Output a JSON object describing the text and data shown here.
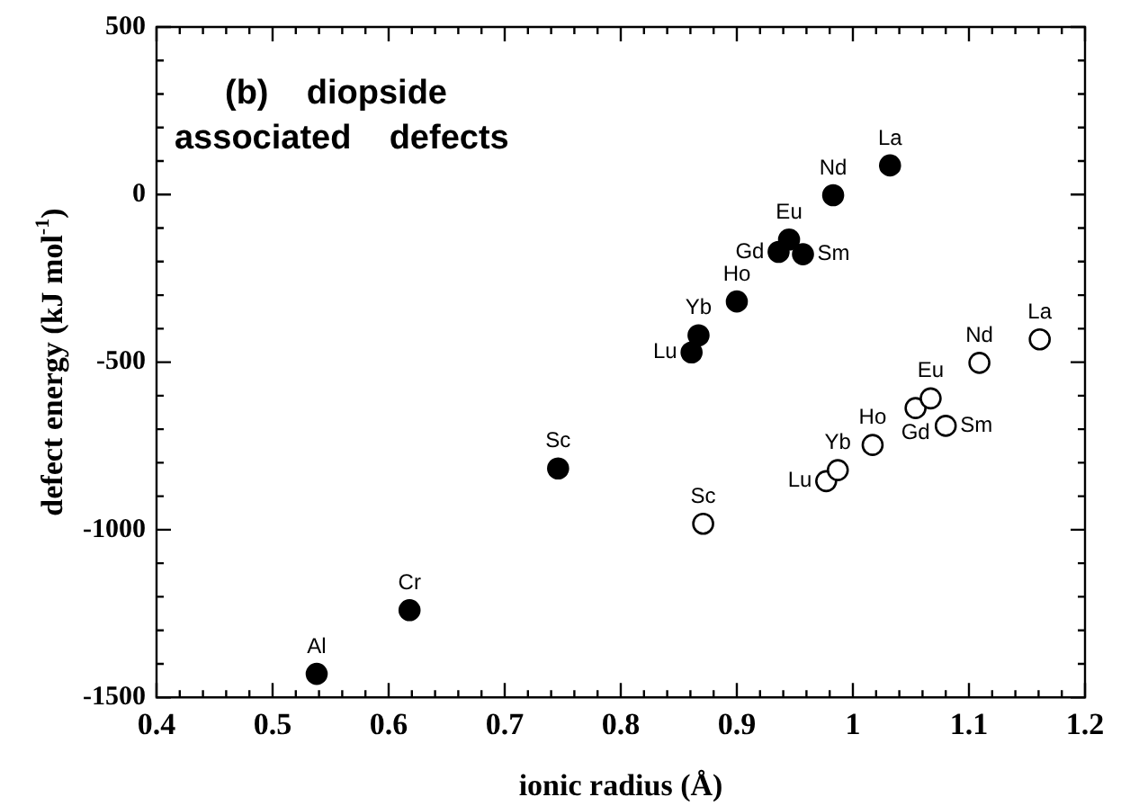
{
  "chart_data": {
    "type": "scatter",
    "annotations": [
      "(b)  diopside",
      "associated  defects",
      {
        "text": "Al",
        "x": 0.538,
        "y": -1430
      },
      {
        "text": "Cr",
        "x": 0.618,
        "y": -1240
      },
      {
        "text": "Sc",
        "x": 0.746,
        "y": -817
      },
      {
        "text": "Lu",
        "x": 0.861,
        "y": -471
      },
      {
        "text": "Yb",
        "x": 0.867,
        "y": -420
      },
      {
        "text": "Ho",
        "x": 0.9,
        "y": -319
      },
      {
        "text": "Gd",
        "x": 0.936,
        "y": -171
      },
      {
        "text": "Eu",
        "x": 0.945,
        "y": -134
      },
      {
        "text": "Sm",
        "x": 0.957,
        "y": -178
      },
      {
        "text": "Nd",
        "x": 0.983,
        "y": -2
      },
      {
        "text": "La",
        "x": 1.032,
        "y": 87
      },
      {
        "text": "Sc",
        "x": 0.871,
        "y": -982
      },
      {
        "text": "Lu",
        "x": 0.977,
        "y": -855
      },
      {
        "text": "Yb",
        "x": 0.987,
        "y": -822
      },
      {
        "text": "Ho",
        "x": 1.017,
        "y": -747
      },
      {
        "text": "Gd",
        "x": 1.054,
        "y": -637
      },
      {
        "text": "Eu",
        "x": 1.067,
        "y": -608
      },
      {
        "text": "Sm",
        "x": 1.08,
        "y": -690
      },
      {
        "text": "Nd",
        "x": 1.109,
        "y": -502
      },
      {
        "text": "La",
        "x": 1.161,
        "y": -432
      }
    ],
    "xlabel": "ionic radius (Å)",
    "ylabel": "defect energy (kJ mol$^{-1}$)",
    "series": [
      {
        "color": "#000000",
        "marker": "circle",
        "x": [
          0.538,
          0.618,
          0.746,
          0.861,
          0.867,
          0.9,
          0.936,
          0.945,
          0.957,
          0.983,
          1.032
        ],
        "values": [
          -1430,
          -1240,
          -817,
          -471,
          -420,
          -319,
          -171,
          -134,
          -178,
          -2,
          87
        ]
      },
      {
        "color": "#ffffff",
        "marker": "circle",
        "x": [
          0.871,
          0.977,
          0.987,
          1.017,
          1.054,
          1.067,
          1.08,
          1.109,
          1.161
        ],
        "values": [
          -982,
          -855,
          -822,
          -747,
          -637,
          -608,
          -690,
          -502,
          -432
        ]
      }
    ],
    "xlim": [
      0.4,
      1.2
    ],
    "xticks": [
      0.4,
      {
        "value": 0.42,
        "label": null
      },
      {
        "value": 0.44,
        "label": null
      },
      {
        "value": 0.46,
        "label": null
      },
      {
        "value": 0.48,
        "label": null
      },
      0.5,
      {
        "value": 0.52,
        "label": null
      },
      {
        "value": 0.54,
        "label": null
      },
      {
        "value": 0.56,
        "label": null
      },
      {
        "value": 0.58,
        "label": null
      },
      0.6,
      {
        "value": 0.62,
        "label": null
      },
      {
        "value": 0.64,
        "label": null
      },
      {
        "value": 0.66,
        "label": null
      },
      {
        "value": 0.68,
        "label": null
      },
      0.7,
      {
        "value": 0.72,
        "label": null
      },
      {
        "value": 0.74,
        "label": null
      },
      {
        "value": 0.76,
        "label": null
      },
      {
        "value": 0.78,
        "label": null
      },
      0.8,
      {
        "value": 0.82,
        "label": null
      },
      {
        "value": 0.84,
        "label": null
      },
      {
        "value": 0.86,
        "label": null
      },
      {
        "value": 0.88,
        "label": null
      },
      0.9,
      {
        "value": 0.92,
        "label": null
      },
      {
        "value": 0.94,
        "label": null
      },
      {
        "value": 0.96,
        "label": null
      },
      {
        "value": 0.98,
        "label": null
      },
      1,
      {
        "value": 1.02,
        "label": null
      },
      {
        "value": 1.04,
        "label": null
      },
      {
        "value": 1.06,
        "label": null
      },
      {
        "value": 1.08,
        "label": null
      },
      1.1,
      {
        "value": 1.12,
        "label": null
      },
      {
        "value": 1.14,
        "label": null
      },
      {
        "value": 1.16,
        "label": null
      },
      {
        "value": 1.18,
        "label": null
      },
      1.2
    ],
    "ylim": [
      -1500,
      500
    ],
    "yticks": [
      -1500,
      {
        "value": -1400,
        "label": null
      },
      {
        "value": -1300,
        "label": null
      },
      {
        "value": -1200,
        "label": null
      },
      {
        "value": -1100,
        "label": null
      },
      -1000,
      {
        "value": -900,
        "label": null
      },
      {
        "value": -800,
        "label": null
      },
      {
        "value": -700,
        "label": null
      },
      {
        "value": -600,
        "label": null
      },
      -500,
      {
        "value": -400,
        "label": null
      },
      {
        "value": -300,
        "label": null
      },
      {
        "value": -200,
        "label": null
      },
      {
        "value": -100,
        "label": null
      },
      0,
      {
        "value": 100,
        "label": null
      },
      {
        "value": 200,
        "label": null
      },
      {
        "value": 300,
        "label": null
      },
      {
        "value": 400,
        "label": null
      },
      500
    ],
    "grid": false,
    "legend": false
  }
}
